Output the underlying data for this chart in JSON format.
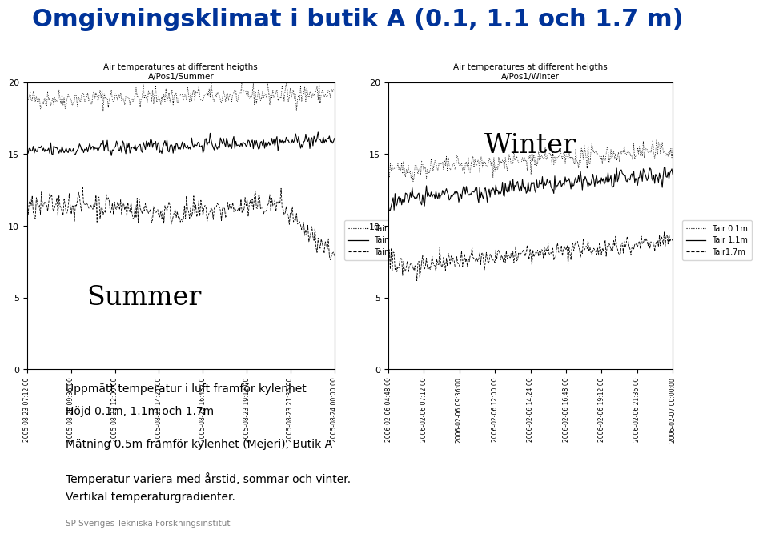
{
  "title": "Omgivningsklimat i butik A (0.1, 1.1 och 1.7 m)",
  "title_color": "#003399",
  "title_fontsize": 22,
  "title_fontweight": "bold",
  "summer_title_line1": "Air temperatures at different heigths",
  "summer_title_line2": "A/Pos1/Summer",
  "winter_title_line1": "Air temperatures at different heigths",
  "winter_title_line2": "A/Pos1/Winter",
  "summer_label": "Summer",
  "winter_label": "Winter",
  "ylim": [
    0,
    20
  ],
  "yticks": [
    0,
    5,
    10,
    15,
    20
  ],
  "summer_xtick_labels": [
    "2005-08-23 07:12:00",
    "2005-08-23 09:36:00",
    "2005-08-23 12:00:00",
    "2005-08-23 14:24:00",
    "2005-08-23 16:48:00",
    "2005-08-23 19:12:00",
    "2005-08-23 21:36:00",
    "2005-08-24 00:00:00"
  ],
  "winter_xtick_labels": [
    "2006-02-06 04:48:00",
    "2006-02-06 07:12:00",
    "2006-02-06 09:36:00",
    "2006-02-06 12:00:00",
    "2006-02-06 14:24:00",
    "2006-02-06 16:48:00",
    "2006-02-06 19:12:00",
    "2006-02-06 21:36:00",
    "2006-02-07 00:00:00"
  ],
  "legend_labels": [
    "Tair 0.1m",
    "Tair 1.1m",
    "Tair1.7m"
  ],
  "text_line1": "Uppmätt temperatur i luft framför kylenhet",
  "text_line2": "Höjd 0.1m, 1.1m och 1.7m",
  "text_line3": "Mätning 0.5m framför kylenhet (Mejeri), Butik A",
  "text_line4": "Temperatur variera med årstid, sommar och vinter.",
  "text_line5": "Vertikal temperaturgradienter.",
  "sp_text": "SP Sveriges Tekniska Forskningsinstitut",
  "sp_blue": "#1a3a6b",
  "background_color": "#ffffff",
  "n_points_summer": 300,
  "n_points_winter": 300
}
